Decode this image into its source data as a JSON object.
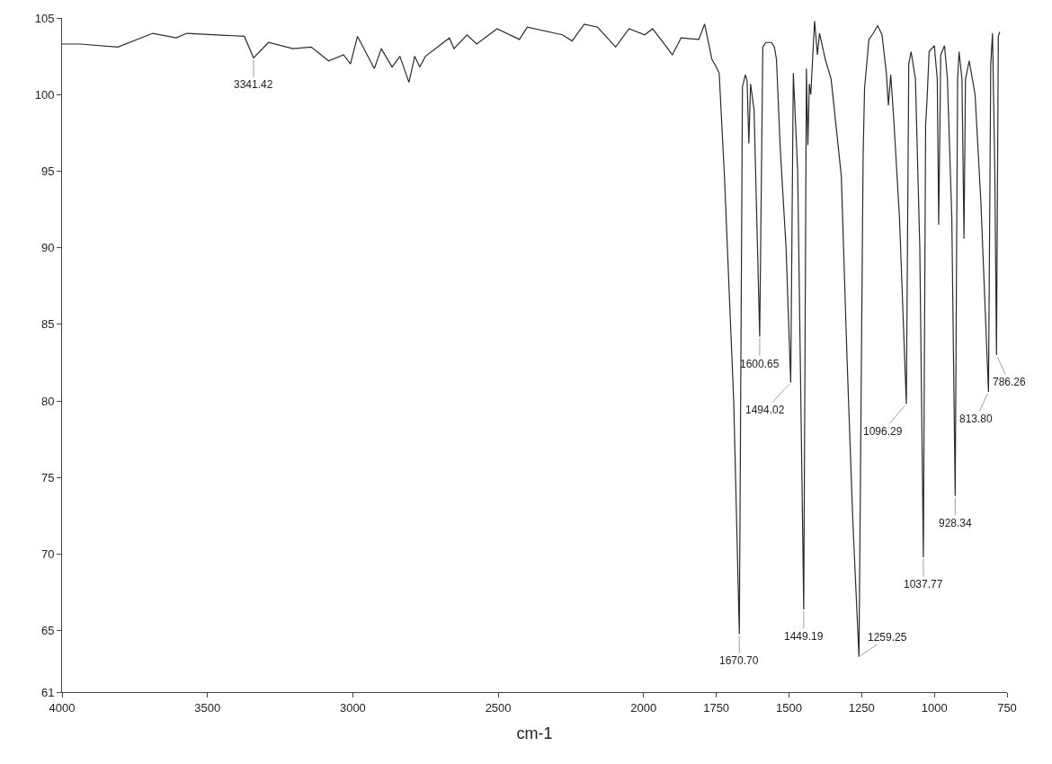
{
  "chart_data": {
    "type": "line",
    "xlabel": "cm-1",
    "xlim": [
      4000,
      750
    ],
    "xticks": [
      4000,
      3500,
      3000,
      2500,
      2000,
      1750,
      1500,
      1250,
      1000,
      750
    ],
    "ylim": [
      61,
      105
    ],
    "yticks": [
      61,
      65,
      70,
      75,
      80,
      85,
      90,
      95,
      100,
      105
    ],
    "marker": "none",
    "line_style": "solid",
    "series": [
      {
        "color": "#2b2b2b",
        "x": [
          4000,
          3938,
          3808,
          3688,
          3608,
          3570,
          3373,
          3341.42,
          3290,
          3206,
          3143,
          3083,
          3032,
          3008,
          2984,
          2926,
          2902,
          2865,
          2838,
          2807,
          2787,
          2770,
          2750,
          2668,
          2652,
          2607,
          2574,
          2504,
          2427,
          2400,
          2279,
          2246,
          2204,
          2158,
          2096,
          2050,
          1996,
          1969,
          1901,
          1871,
          1810,
          1790,
          1765,
          1750,
          1740,
          1722,
          1690,
          1670.7,
          1660,
          1650,
          1644,
          1638,
          1632,
          1620,
          1600.65,
          1590,
          1580,
          1560,
          1550,
          1543,
          1530,
          1510,
          1494.02,
          1485,
          1470,
          1449.19,
          1440,
          1435,
          1430,
          1425,
          1412,
          1402,
          1395,
          1375,
          1355,
          1320,
          1300,
          1280,
          1259.25,
          1245,
          1240,
          1225,
          1210,
          1195,
          1180,
          1165,
          1158,
          1150,
          1140,
          1120,
          1096.29,
          1088,
          1080,
          1065,
          1050,
          1037.77,
          1030,
          1025,
          1018,
          1000,
          990,
          985,
          978,
          965,
          955,
          940,
          928.34,
          920,
          915,
          905,
          898,
          893,
          880,
          860,
          840,
          813.8,
          806,
          800,
          792,
          786.26,
          780,
          775
        ],
        "values": [
          103.3,
          103.3,
          103.1,
          104.0,
          103.7,
          104.0,
          103.8,
          102.4,
          103.4,
          103.0,
          103.1,
          102.2,
          102.6,
          102.0,
          103.8,
          101.7,
          103.0,
          101.8,
          102.5,
          100.8,
          102.5,
          101.8,
          102.5,
          103.7,
          103.0,
          103.9,
          103.3,
          104.3,
          103.6,
          104.4,
          103.9,
          103.5,
          104.6,
          104.4,
          103.1,
          104.3,
          103.9,
          104.3,
          102.6,
          103.7,
          103.6,
          104.6,
          102.3,
          101.8,
          101.4,
          94.7,
          80,
          64.8,
          100.5,
          101.3,
          100.9,
          96.8,
          100.7,
          99,
          84.2,
          103.1,
          103.4,
          103.4,
          103.1,
          102.3,
          96.5,
          90,
          81.2,
          101.4,
          95,
          66.4,
          101.7,
          96.7,
          100.7,
          100.0,
          104.8,
          102.6,
          104.0,
          102.3,
          101.0,
          94.7,
          82.6,
          72,
          63.3,
          96,
          100.4,
          103.6,
          104.0,
          104.5,
          103.9,
          101.4,
          99.3,
          101.3,
          98.5,
          92,
          79.8,
          102.0,
          102.8,
          101.0,
          90,
          69.8,
          98.0,
          99.7,
          102.8,
          103.2,
          101.0,
          91.5,
          102.6,
          103.2,
          101.0,
          92,
          73.8,
          101.0,
          102.8,
          101.0,
          90.6,
          101.0,
          102.2,
          100.0,
          93,
          80.6,
          102.0,
          104.0,
          95,
          83.0,
          103.8,
          104.1
        ]
      }
    ],
    "annotations": [
      {
        "text": "3341.42",
        "x": 3341.42,
        "y": 102.4
      },
      {
        "text": "1670.70",
        "x": 1670.7,
        "y": 64.8
      },
      {
        "text": "1600.65",
        "x": 1600.65,
        "y": 84.2
      },
      {
        "text": "1494.02",
        "x": 1494.02,
        "y": 81.2
      },
      {
        "text": "1449.19",
        "x": 1449.19,
        "y": 66.4
      },
      {
        "text": "1259.25",
        "x": 1259.25,
        "y": 63.3
      },
      {
        "text": "1096.29",
        "x": 1096.29,
        "y": 79.8
      },
      {
        "text": "1037.77",
        "x": 1037.77,
        "y": 69.8
      },
      {
        "text": "928.34",
        "x": 928.34,
        "y": 73.8
      },
      {
        "text": "813.80",
        "x": 813.8,
        "y": 80.6
      },
      {
        "text": "786.26",
        "x": 786.26,
        "y": 83.0
      }
    ]
  }
}
